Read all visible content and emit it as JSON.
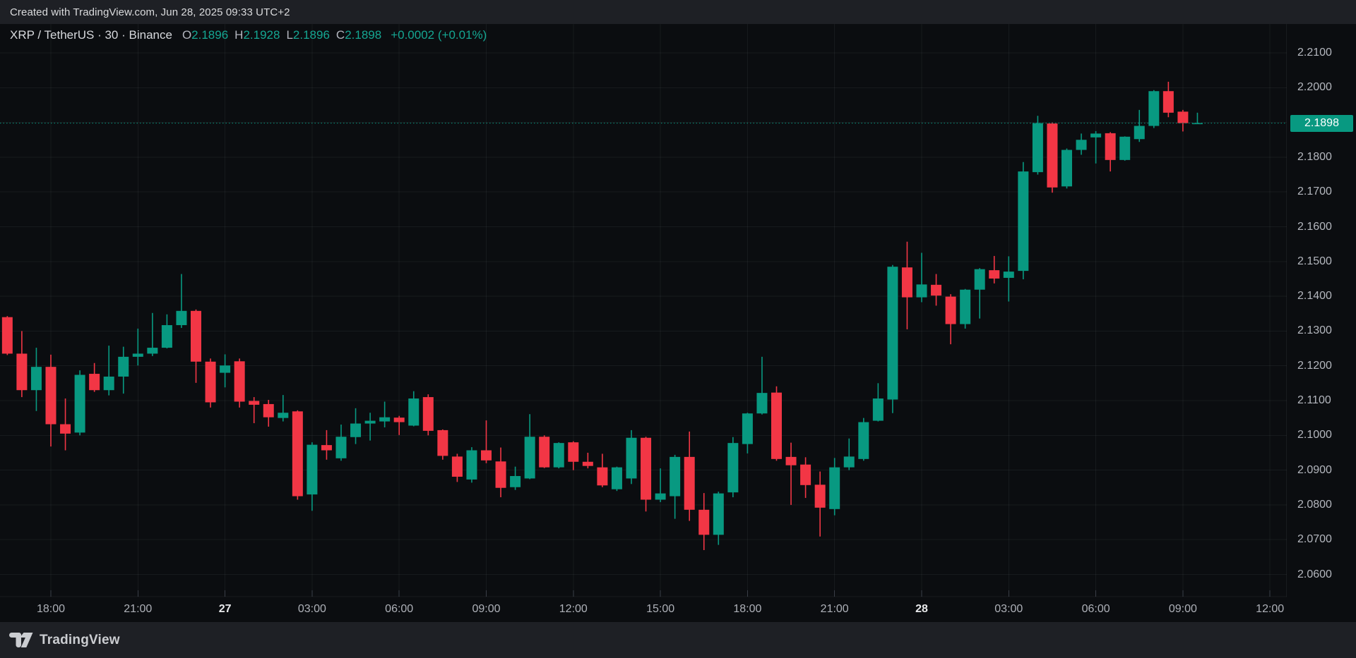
{
  "header": {
    "text": "Created with TradingView.com, Jun 28, 2025 09:33 UTC+2"
  },
  "legend": {
    "title": "XRP / TetherUS · 30 · Binance",
    "ohlc": [
      {
        "k": "O",
        "v": "2.1896"
      },
      {
        "k": "H",
        "v": "2.1928"
      },
      {
        "k": "L",
        "v": "2.1896"
      },
      {
        "k": "C",
        "v": "2.1898"
      }
    ],
    "change": "+0.0002 (+0.01%)"
  },
  "price_axis": {
    "labels": [
      "2.2100",
      "2.2000",
      "2.1800",
      "2.1700",
      "2.1600",
      "2.1500",
      "2.1400",
      "2.1300",
      "2.1200",
      "2.1100",
      "2.1000",
      "2.0900",
      "2.0800",
      "2.0700",
      "2.0600"
    ],
    "current_label": "2.1898"
  },
  "time_axis": {
    "ticks": [
      {
        "label": "18:00",
        "i": 3,
        "bold": false
      },
      {
        "label": "21:00",
        "i": 9,
        "bold": false
      },
      {
        "label": "27",
        "i": 15,
        "bold": true
      },
      {
        "label": "03:00",
        "i": 21,
        "bold": false
      },
      {
        "label": "06:00",
        "i": 27,
        "bold": false
      },
      {
        "label": "09:00",
        "i": 33,
        "bold": false
      },
      {
        "label": "12:00",
        "i": 39,
        "bold": false
      },
      {
        "label": "15:00",
        "i": 45,
        "bold": false
      },
      {
        "label": "18:00",
        "i": 51,
        "bold": false
      },
      {
        "label": "21:00",
        "i": 57,
        "bold": false
      },
      {
        "label": "28",
        "i": 63,
        "bold": true
      },
      {
        "label": "03:00",
        "i": 69,
        "bold": false
      },
      {
        "label": "06:00",
        "i": 75,
        "bold": false
      },
      {
        "label": "09:00",
        "i": 81,
        "bold": false
      },
      {
        "label": "12:00",
        "i": 87,
        "bold": false
      }
    ]
  },
  "footer": {
    "brand": "TradingView"
  },
  "colors": {
    "up": "#089981",
    "down": "#f23645",
    "current_label_bg": "#089981",
    "current_line": "#089981"
  },
  "chart_data": {
    "type": "candlestick",
    "title": "XRP / TetherUS · 30 · Binance",
    "symbol": "XRP / TetherUS",
    "exchange": "Binance",
    "interval_minutes": 30,
    "timezone": "UTC+2",
    "last_price": 2.1898,
    "ylim": [
      2.054,
      2.218
    ],
    "price_grid_min": 2.06,
    "price_grid_max": 2.21,
    "price_grid_step": 0.01,
    "candles_format": [
      "time",
      "open",
      "high",
      "low",
      "close"
    ],
    "candles": [
      [
        "26 16:30",
        2.134,
        2.1343,
        2.1231,
        2.1235
      ],
      [
        "26 17:00",
        2.1235,
        2.13,
        2.111,
        2.113
      ],
      [
        "26 17:30",
        2.113,
        2.1252,
        2.107,
        2.1197
      ],
      [
        "26 18:00",
        2.1197,
        2.1232,
        2.0968,
        2.1032
      ],
      [
        "26 18:30",
        2.1032,
        2.1106,
        2.0957,
        2.1005
      ],
      [
        "26 19:00",
        2.1008,
        2.1187,
        2.1,
        2.1174
      ],
      [
        "26 19:30",
        2.1177,
        2.1208,
        2.1125,
        2.113
      ],
      [
        "26 20:00",
        2.113,
        2.1258,
        2.1115,
        2.1169
      ],
      [
        "26 20:30",
        2.1169,
        2.1255,
        2.112,
        2.1226
      ],
      [
        "26 21:00",
        2.1226,
        2.1307,
        2.1201,
        2.1235
      ],
      [
        "26 21:30",
        2.1235,
        2.1352,
        2.1228,
        2.1252
      ],
      [
        "26 22:00",
        2.1252,
        2.1348,
        2.125,
        2.1317
      ],
      [
        "26 22:30",
        2.1317,
        2.1464,
        2.1309,
        2.1358
      ],
      [
        "26 23:00",
        2.1358,
        2.1362,
        2.1151,
        2.1212
      ],
      [
        "26 23:30",
        2.1212,
        2.1221,
        2.108,
        2.1095
      ],
      [
        "27 00:00",
        2.118,
        2.1233,
        2.1138,
        2.1201
      ],
      [
        "27 00:30",
        2.1213,
        2.1221,
        2.108,
        2.1097
      ],
      [
        "27 01:00",
        2.1099,
        2.111,
        2.1035,
        2.1088
      ],
      [
        "27 01:30",
        2.109,
        2.1102,
        2.1025,
        2.1052
      ],
      [
        "27 02:00",
        2.105,
        2.1116,
        2.104,
        2.1065
      ],
      [
        "27 02:30",
        2.1069,
        2.1072,
        2.0815,
        2.0825
      ],
      [
        "27 03:00",
        2.083,
        2.098,
        2.0783,
        2.0973
      ],
      [
        "27 03:30",
        2.0972,
        2.1015,
        2.093,
        2.0957
      ],
      [
        "27 04:00",
        2.0934,
        2.1031,
        2.0927,
        2.0996
      ],
      [
        "27 04:30",
        2.0995,
        2.1078,
        2.0975,
        2.1034
      ],
      [
        "27 05:00",
        2.1034,
        2.1065,
        2.0985,
        2.1042
      ],
      [
        "27 05:30",
        2.104,
        2.1097,
        2.1023,
        2.1052
      ],
      [
        "27 06:00",
        2.1051,
        2.1056,
        2.1001,
        2.1038
      ],
      [
        "27 06:30",
        2.1028,
        2.1127,
        2.1026,
        2.1106
      ],
      [
        "27 07:00",
        2.111,
        2.1118,
        2.1,
        2.1013
      ],
      [
        "27 07:30",
        2.1015,
        2.1017,
        2.093,
        2.0941
      ],
      [
        "27 08:00",
        2.0939,
        2.0947,
        2.0866,
        2.0881
      ],
      [
        "27 08:30",
        2.0873,
        2.0966,
        2.0864,
        2.0957
      ],
      [
        "27 09:00",
        2.0957,
        2.1043,
        2.092,
        2.0928
      ],
      [
        "27 09:30",
        2.0925,
        2.0965,
        2.0822,
        2.0849
      ],
      [
        "27 10:00",
        2.0851,
        2.091,
        2.0843,
        2.0883
      ],
      [
        "27 10:30",
        2.0876,
        2.1061,
        2.0874,
        2.0996
      ],
      [
        "27 11:00",
        2.0996,
        2.1,
        2.0906,
        2.0908
      ],
      [
        "27 11:30",
        2.0908,
        2.098,
        2.0905,
        2.0978
      ],
      [
        "27 12:00",
        2.098,
        2.0983,
        2.09,
        2.0924
      ],
      [
        "27 12:30",
        2.0924,
        2.095,
        2.0905,
        2.0912
      ],
      [
        "27 13:00",
        2.0908,
        2.0947,
        2.0851,
        2.0856
      ],
      [
        "27 13:30",
        2.0845,
        2.091,
        2.084,
        2.0908
      ],
      [
        "27 14:00",
        2.0876,
        2.1015,
        2.086,
        2.0993
      ],
      [
        "27 14:30",
        2.0993,
        2.0996,
        2.0781,
        2.0815
      ],
      [
        "27 15:00",
        2.0815,
        2.0905,
        2.0808,
        2.0833
      ],
      [
        "27 15:30",
        2.0825,
        2.0944,
        2.076,
        2.0938
      ],
      [
        "27 16:00",
        2.0938,
        2.1011,
        2.0754,
        2.0786
      ],
      [
        "27 16:30",
        2.0786,
        2.0834,
        2.067,
        2.0714
      ],
      [
        "27 17:00",
        2.0714,
        2.0838,
        2.0685,
        2.0833
      ],
      [
        "27 17:30",
        2.0836,
        2.0995,
        2.0822,
        2.0978
      ],
      [
        "27 18:00",
        2.0975,
        2.1065,
        2.0948,
        2.1063
      ],
      [
        "27 18:30",
        2.1063,
        2.1226,
        2.106,
        2.1122
      ],
      [
        "27 19:00",
        2.1123,
        2.1141,
        2.0927,
        2.0932
      ],
      [
        "27 19:30",
        2.0938,
        2.0979,
        2.08,
        2.0914
      ],
      [
        "27 20:00",
        2.0916,
        2.0937,
        2.082,
        2.0857
      ],
      [
        "27 20:30",
        2.0858,
        2.0896,
        2.0709,
        2.0792
      ],
      [
        "27 21:00",
        2.0788,
        2.0935,
        2.077,
        2.0908
      ],
      [
        "27 21:30",
        2.0908,
        2.0991,
        2.09,
        2.0939
      ],
      [
        "27 22:00",
        2.0932,
        2.105,
        2.0927,
        2.1038
      ],
      [
        "27 22:30",
        2.1042,
        2.115,
        2.104,
        2.1106
      ],
      [
        "27 23:00",
        2.1103,
        2.149,
        2.1064,
        2.1485
      ],
      [
        "27 23:30",
        2.1483,
        2.1557,
        2.1305,
        2.1397
      ],
      [
        "28 00:00",
        2.1397,
        2.1525,
        2.1383,
        2.1434
      ],
      [
        "28 00:30",
        2.1433,
        2.1464,
        2.1373,
        2.1402
      ],
      [
        "28 01:00",
        2.1399,
        2.1406,
        2.1262,
        2.132
      ],
      [
        "28 01:30",
        2.132,
        2.1421,
        2.1307,
        2.1419
      ],
      [
        "28 02:00",
        2.1419,
        2.1481,
        2.1336,
        2.1478
      ],
      [
        "28 02:30",
        2.1475,
        2.1516,
        2.1437,
        2.1451
      ],
      [
        "28 03:00",
        2.1453,
        2.1515,
        2.1385,
        2.1471
      ],
      [
        "28 03:30",
        2.1473,
        2.1786,
        2.1449,
        2.1759
      ],
      [
        "28 04:00",
        2.1757,
        2.1919,
        2.175,
        2.1898
      ],
      [
        "28 04:30",
        2.1897,
        2.19,
        2.1698,
        2.1713
      ],
      [
        "28 05:00",
        2.1716,
        2.1825,
        2.171,
        2.1821
      ],
      [
        "28 05:30",
        2.1821,
        2.1868,
        2.1807,
        2.185
      ],
      [
        "28 06:00",
        2.1857,
        2.1875,
        2.1782,
        2.1868
      ],
      [
        "28 06:30",
        2.1869,
        2.1872,
        2.1759,
        2.1792
      ],
      [
        "28 07:00",
        2.1792,
        2.186,
        2.179,
        2.1859
      ],
      [
        "28 07:30",
        2.1852,
        2.1936,
        2.1844,
        2.189
      ],
      [
        "28 08:00",
        2.189,
        2.1993,
        2.1884,
        2.199
      ],
      [
        "28 08:30",
        2.199,
        2.2017,
        2.1915,
        2.1928
      ],
      [
        "28 09:00",
        2.1931,
        2.1936,
        2.1874,
        2.1898
      ],
      [
        "28 09:30",
        2.1896,
        2.1928,
        2.1896,
        2.1898
      ]
    ]
  }
}
